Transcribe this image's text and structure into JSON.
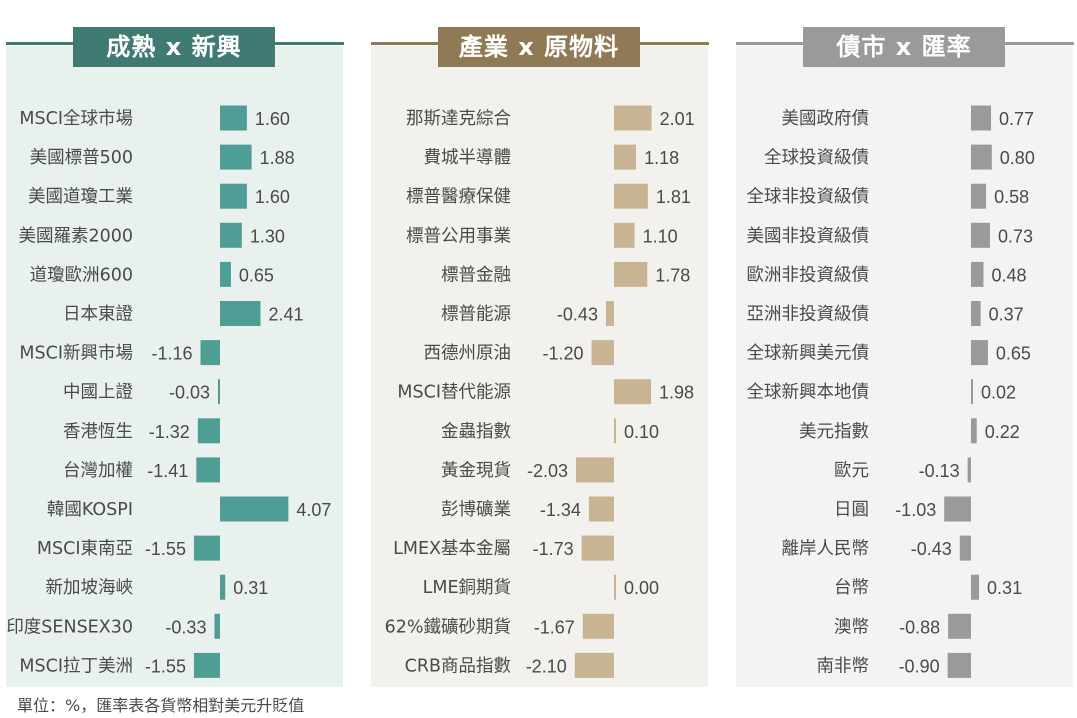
{
  "footnote": "單位：%，匯率表各貨幣相對美元升貶值",
  "chart_data": [
    {
      "type": "bar",
      "title": "成熟 x 新興",
      "color": "#4f9e95",
      "panel_bg": "#e9f1ef",
      "header_bg": "#3f7b72",
      "categories": [
        "MSCI全球市場",
        "美國標普500",
        "美國道瓊工業",
        "美國羅素2000",
        "道瓊歐洲600",
        "日本東證",
        "MSCI新興市場",
        "中國上證",
        "香港恆生",
        "台灣加權",
        "韓國KOSPI",
        "MSCI東南亞",
        "新加坡海峽",
        "印度SENSEX30",
        "MSCI拉丁美洲"
      ],
      "values": [
        1.6,
        1.88,
        1.6,
        1.3,
        0.65,
        2.41,
        -1.16,
        -0.03,
        -1.32,
        -1.41,
        4.07,
        -1.55,
        0.31,
        -0.33,
        -1.55
      ]
    },
    {
      "type": "bar",
      "title": "產業 x 原物料",
      "color": "#c8b392",
      "panel_bg": "#f3f1ee",
      "header_bg": "#8f7a55",
      "categories": [
        "那斯達克綜合",
        "費城半導體",
        "標普醫療保健",
        "標普公用事業",
        "標普金融",
        "標普能源",
        "西德州原油",
        "MSCI替代能源",
        "金蟲指數",
        "黃金現貨",
        "彭博礦業",
        "LMEX基本金屬",
        "LME銅期貨",
        "62%鐵礦砂期貨",
        "CRB商品指數"
      ],
      "values": [
        2.01,
        1.18,
        1.81,
        1.1,
        1.78,
        -0.43,
        -1.2,
        1.98,
        0.1,
        -2.03,
        -1.34,
        -1.73,
        0.0,
        -1.67,
        -2.1
      ]
    },
    {
      "type": "bar",
      "title": "債市 x 匯率",
      "color": "#9a9a9a",
      "panel_bg": "#f3f3f3",
      "header_bg": "#9a9a9a",
      "categories": [
        "美國政府債",
        "全球投資級債",
        "全球非投資級債",
        "美國非投資級債",
        "歐洲非投資級債",
        "亞洲非投資級債",
        "全球新興美元債",
        "全球新興本地債",
        "美元指數",
        "歐元",
        "日圓",
        "離岸人民幣",
        "台幣",
        "澳幣",
        "南非幣"
      ],
      "values": [
        0.77,
        0.8,
        0.58,
        0.73,
        0.48,
        0.37,
        0.65,
        0.02,
        0.22,
        -0.13,
        -1.03,
        -0.43,
        0.31,
        -0.88,
        -0.9
      ]
    }
  ]
}
